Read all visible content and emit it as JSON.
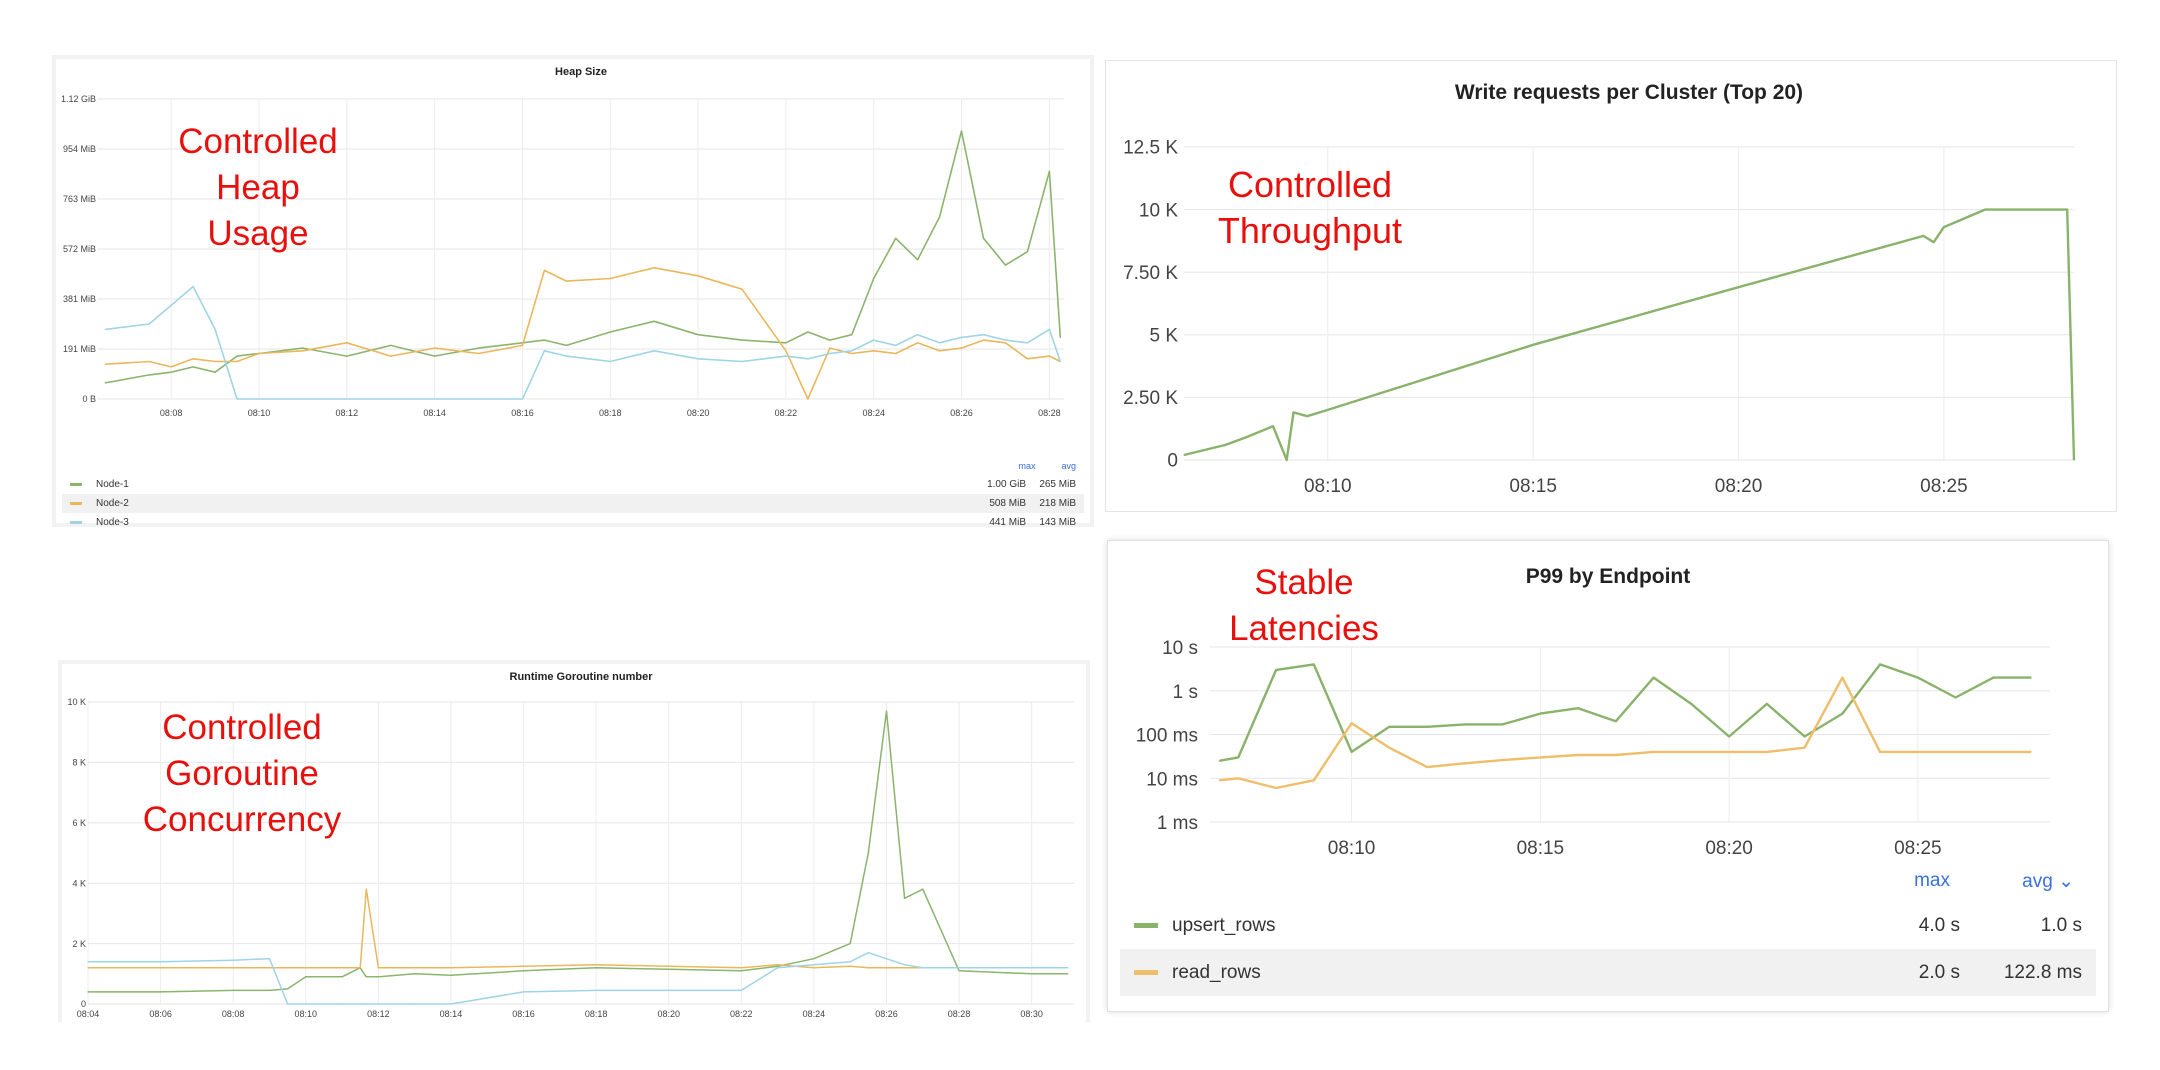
{
  "colors": {
    "node1": "#8bb46e",
    "node2": "#eab75c",
    "node3": "#9fd4e6",
    "annotation": "#e8100c",
    "series_green": "#89b36b",
    "series_orange": "#eebe6b"
  },
  "annotations": {
    "heap": [
      "Controlled",
      "Heap",
      "Usage"
    ],
    "throughput": [
      "Controlled",
      "Throughput"
    ],
    "goroutine": [
      "Controlled",
      "Goroutine",
      "Concurrency"
    ],
    "latency": [
      "Stable",
      "Latencies"
    ]
  },
  "legend_headers": {
    "max": "max",
    "avg": "avg"
  },
  "latency_avg_header": "avg ⌄",
  "chart_data": [
    {
      "id": "heap",
      "type": "line",
      "title": "Heap Size",
      "y_ticks": [
        "0 B",
        "191 MiB",
        "381 MiB",
        "572 MiB",
        "763 MiB",
        "954 MiB",
        "1.12 GiB"
      ],
      "ylim": [
        0,
        1.12
      ],
      "y_unit": "GiB",
      "x_ticks": [
        "08:08",
        "08:10",
        "08:12",
        "08:14",
        "08:16",
        "08:18",
        "08:20",
        "08:22",
        "08:24",
        "08:26",
        "08:28"
      ],
      "x": [
        "08:06:30",
        "08:07:30",
        "08:08:00",
        "08:08:30",
        "08:09:00",
        "08:09:30",
        "08:10:00",
        "08:11:00",
        "08:12:00",
        "08:13:00",
        "08:14:00",
        "08:15:00",
        "08:16:00",
        "08:16:30",
        "08:17:00",
        "08:18:00",
        "08:19:00",
        "08:20:00",
        "08:21:00",
        "08:22:00",
        "08:22:30",
        "08:23:00",
        "08:23:30",
        "08:24:00",
        "08:24:30",
        "08:25:00",
        "08:25:30",
        "08:26:00",
        "08:26:30",
        "08:27:00",
        "08:27:30",
        "08:28:00",
        "08:28:15"
      ],
      "series": [
        {
          "name": "Node-1",
          "max": "1.00 GiB",
          "avg": "265 MiB",
          "values": [
            0.06,
            0.09,
            0.1,
            0.12,
            0.1,
            0.16,
            0.17,
            0.19,
            0.16,
            0.2,
            0.16,
            0.19,
            0.21,
            0.22,
            0.2,
            0.25,
            0.29,
            0.24,
            0.22,
            0.21,
            0.25,
            0.22,
            0.24,
            0.45,
            0.6,
            0.52,
            0.68,
            1.0,
            0.6,
            0.5,
            0.55,
            0.85,
            0.23
          ]
        },
        {
          "name": "Node-2",
          "max": "508 MiB",
          "avg": "218 MiB",
          "values": [
            0.13,
            0.14,
            0.12,
            0.15,
            0.14,
            0.14,
            0.17,
            0.18,
            0.21,
            0.16,
            0.19,
            0.17,
            0.2,
            0.48,
            0.44,
            0.45,
            0.49,
            0.46,
            0.41,
            0.18,
            0.0,
            0.19,
            0.17,
            0.18,
            0.17,
            0.21,
            0.18,
            0.19,
            0.22,
            0.21,
            0.15,
            0.16,
            0.14
          ]
        },
        {
          "name": "Node-3",
          "max": "441 MiB",
          "avg": "143 MiB",
          "values": [
            0.26,
            0.28,
            0.35,
            0.42,
            0.26,
            0.0,
            0.0,
            0.0,
            0.0,
            0.0,
            0.0,
            0.0,
            0.0,
            0.18,
            0.16,
            0.14,
            0.18,
            0.15,
            0.14,
            0.16,
            0.15,
            0.17,
            0.18,
            0.22,
            0.2,
            0.24,
            0.21,
            0.23,
            0.24,
            0.22,
            0.21,
            0.26,
            0.14
          ]
        }
      ]
    },
    {
      "id": "throughput",
      "type": "line",
      "title": "Write requests per Cluster (Top 20)",
      "y_ticks": [
        "0",
        "2.50 K",
        "5 K",
        "7.50 K",
        "10 K",
        "12.5 K"
      ],
      "ylim": [
        0,
        12500
      ],
      "x_ticks": [
        "08:10",
        "08:15",
        "08:20",
        "08:25"
      ],
      "grid": true,
      "series": [
        {
          "name": "",
          "x": [
            "08:06:30",
            "08:07:30",
            "08:08:00",
            "08:08:40",
            "08:09:00",
            "08:09:10",
            "08:09:30",
            "08:10:00",
            "08:15:00",
            "08:20:00",
            "08:24:30",
            "08:24:45",
            "08:25:00",
            "08:26:00",
            "08:28:00",
            "08:28:10"
          ],
          "values": [
            200,
            600,
            900,
            1350,
            0,
            1900,
            1750,
            2000,
            4600,
            6900,
            8950,
            8700,
            9300,
            10000,
            10000,
            0
          ]
        }
      ]
    },
    {
      "id": "goroutine",
      "type": "line",
      "title": "Runtime Goroutine number",
      "y_ticks": [
        "0",
        "2 K",
        "4 K",
        "6 K",
        "8 K",
        "10 K"
      ],
      "ylim": [
        0,
        10000
      ],
      "x_ticks": [
        "08:04",
        "08:06",
        "08:08",
        "08:10",
        "08:12",
        "08:14",
        "08:16",
        "08:18",
        "08:20",
        "08:22",
        "08:24",
        "08:26",
        "08:28",
        "08:30"
      ],
      "x": [
        "08:04:00",
        "08:06:00",
        "08:08:00",
        "08:09:00",
        "08:09:30",
        "08:10:00",
        "08:11:00",
        "08:11:30",
        "08:11:40",
        "08:12:00",
        "08:13:00",
        "08:14:00",
        "08:16:00",
        "08:18:00",
        "08:20:00",
        "08:22:00",
        "08:23:00",
        "08:24:00",
        "08:25:00",
        "08:25:30",
        "08:26:00",
        "08:26:30",
        "08:27:00",
        "08:28:00",
        "08:30:00",
        "08:31:00"
      ],
      "series": [
        {
          "name": "Node-1",
          "values": [
            400,
            400,
            450,
            450,
            500,
            900,
            900,
            1200,
            900,
            900,
            1000,
            950,
            1100,
            1200,
            1150,
            1100,
            1250,
            1500,
            2000,
            5000,
            9700,
            3500,
            3800,
            1100,
            1000,
            1000
          ]
        },
        {
          "name": "Node-2",
          "values": [
            1200,
            1200,
            1200,
            1200,
            1200,
            1200,
            1200,
            1200,
            3800,
            1200,
            1200,
            1200,
            1250,
            1300,
            1250,
            1200,
            1300,
            1200,
            1250,
            1200,
            1200,
            1200,
            1200,
            1200,
            1200,
            1200
          ]
        },
        {
          "name": "Node-3",
          "values": [
            1400,
            1400,
            1450,
            1500,
            0,
            0,
            0,
            0,
            0,
            0,
            0,
            0,
            400,
            450,
            450,
            450,
            1200,
            1300,
            1400,
            1700,
            1500,
            1300,
            1200,
            1200,
            1200,
            1200
          ]
        }
      ]
    },
    {
      "id": "latency",
      "type": "line",
      "title": "P99 by Endpoint",
      "y_scale": "log",
      "y_ticks": [
        "1 ms",
        "10 ms",
        "100 ms",
        "1 s",
        "10 s"
      ],
      "ylim": [
        0.001,
        10
      ],
      "y_unit": "s",
      "x_ticks": [
        "08:10",
        "08:15",
        "08:20",
        "08:25"
      ],
      "x": [
        "08:06:30",
        "08:07:00",
        "08:08:00",
        "08:09:00",
        "08:10:00",
        "08:11:00",
        "08:12:00",
        "08:13:00",
        "08:14:00",
        "08:15:00",
        "08:16:00",
        "08:17:00",
        "08:18:00",
        "08:19:00",
        "08:20:00",
        "08:21:00",
        "08:22:00",
        "08:23:00",
        "08:24:00",
        "08:25:00",
        "08:26:00",
        "08:27:00",
        "08:28:00"
      ],
      "series": [
        {
          "name": "upsert_rows",
          "max": "4.0 s",
          "avg": "1.0 s",
          "values": [
            0.025,
            0.03,
            3.0,
            4.0,
            0.04,
            0.15,
            0.15,
            0.17,
            0.17,
            0.3,
            0.4,
            0.2,
            2.0,
            0.5,
            0.09,
            0.5,
            0.09,
            0.3,
            4.0,
            2.0,
            0.7,
            2.0,
            2.0
          ]
        },
        {
          "name": "read_rows",
          "max": "2.0 s",
          "avg": "122.8 ms",
          "values": [
            0.009,
            0.01,
            0.006,
            0.009,
            0.18,
            0.05,
            0.018,
            0.022,
            0.026,
            0.03,
            0.034,
            0.034,
            0.04,
            0.04,
            0.04,
            0.04,
            0.05,
            2.0,
            0.04,
            0.04,
            0.04,
            0.04,
            0.04
          ]
        }
      ]
    }
  ]
}
